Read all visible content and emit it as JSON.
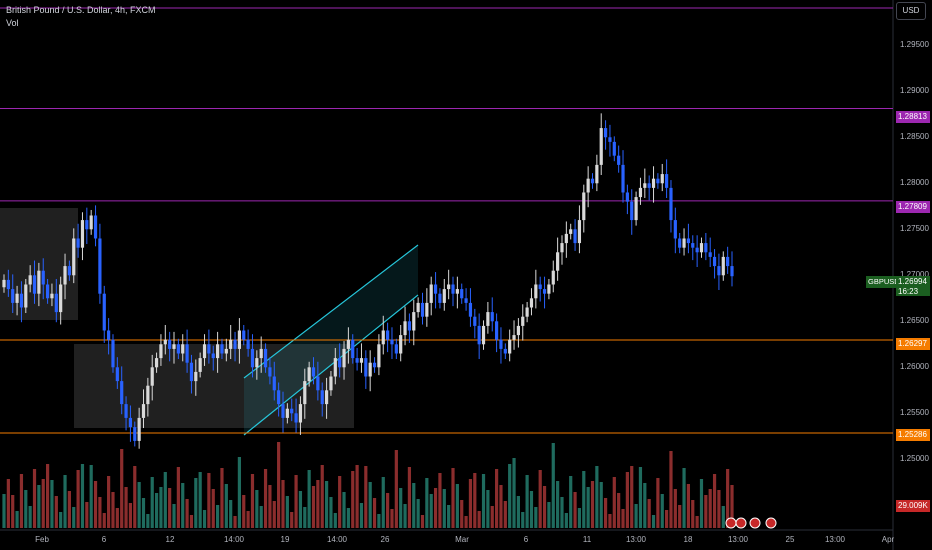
{
  "header": {
    "title": "British Pound / U.S. Dollar, 4h, FXCM",
    "indicator": "Vol"
  },
  "currency_button": "USD",
  "price_tags": {
    "level1": {
      "label": "1.28813",
      "color": "#9c27b0"
    },
    "level2": {
      "label": "1.27809",
      "color": "#9c27b0"
    },
    "current_symbol": "GBPUSD",
    "current_price": "1.26994",
    "countdown": "16:23",
    "current_color": "#1b5e20",
    "level3": {
      "label": "1.26297",
      "color": "#f57c00"
    },
    "level4": {
      "label": "1.25286",
      "color": "#f57c00"
    },
    "volume": {
      "label": "29.009K",
      "color": "#c62828"
    }
  },
  "colors": {
    "up": "#d9d9d9",
    "down": "#2962ff",
    "vol_up": "#1f6b5e",
    "vol_down": "#8b2d2d",
    "channel": "#26c6da"
  },
  "chart_data": {
    "type": "candlestick",
    "symbol": "GBPUSD",
    "timeframe": "4h",
    "ylim": [
      1.247,
      1.3
    ],
    "price_ticks": [
      "1.29500",
      "1.29000",
      "1.28500",
      "1.28000",
      "1.27500",
      "1.27000",
      "1.26500",
      "1.26000",
      "1.25500",
      "1.25000"
    ],
    "price_tick_values": [
      1.295,
      1.29,
      1.285,
      1.28,
      1.275,
      1.27,
      1.265,
      1.26,
      1.255,
      1.25
    ],
    "x_tick_labels": [
      "Feb",
      "6",
      "12",
      "14:00",
      "19",
      "14:00",
      "26",
      "Mar",
      "6",
      "11",
      "13:00",
      "18",
      "13:00",
      "25",
      "13:00",
      "Apr"
    ],
    "horizontal_levels": [
      1.29905,
      1.28813,
      1.27809,
      1.26297,
      1.25286
    ],
    "closes": [
      1.2695,
      1.2685,
      1.267,
      1.268,
      1.2665,
      1.269,
      1.27,
      1.268,
      1.2705,
      1.269,
      1.2675,
      1.268,
      1.266,
      1.269,
      1.271,
      1.27,
      1.274,
      1.273,
      1.276,
      1.275,
      1.2765,
      1.274,
      1.268,
      1.264,
      1.263,
      1.26,
      1.2585,
      1.256,
      1.2545,
      1.2535,
      1.252,
      1.2545,
      1.256,
      1.258,
      1.26,
      1.261,
      1.2625,
      1.263,
      1.262,
      1.2625,
      1.2615,
      1.2625,
      1.2605,
      1.2585,
      1.2595,
      1.261,
      1.2625,
      1.2615,
      1.261,
      1.2625,
      1.2615,
      1.262,
      1.263,
      1.262,
      1.264,
      1.263,
      1.262,
      1.26,
      1.261,
      1.262,
      1.26,
      1.259,
      1.2575,
      1.256,
      1.2545,
      1.2555,
      1.255,
      1.254,
      1.256,
      1.2585,
      1.26,
      1.259,
      1.2575,
      1.256,
      1.2575,
      1.259,
      1.261,
      1.26,
      1.262,
      1.263,
      1.261,
      1.2605,
      1.261,
      1.259,
      1.2605,
      1.26,
      1.2625,
      1.264,
      1.263,
      1.2625,
      1.2615,
      1.2635,
      1.265,
      1.264,
      1.266,
      1.267,
      1.2655,
      1.267,
      1.269,
      1.268,
      1.267,
      1.2685,
      1.269,
      1.268,
      1.2685,
      1.2675,
      1.267,
      1.2655,
      1.2645,
      1.2625,
      1.2645,
      1.266,
      1.265,
      1.263,
      1.262,
      1.2615,
      1.263,
      1.2635,
      1.2645,
      1.2655,
      1.2665,
      1.2675,
      1.269,
      1.2685,
      1.268,
      1.269,
      1.2705,
      1.2725,
      1.2735,
      1.2745,
      1.275,
      1.2735,
      1.276,
      1.279,
      1.2805,
      1.28,
      1.282,
      1.286,
      1.285,
      1.2845,
      1.283,
      1.282,
      1.279,
      1.278,
      1.276,
      1.2785,
      1.2795,
      1.28,
      1.2795,
      1.2805,
      1.28,
      1.281,
      1.2795,
      1.276,
      1.274,
      1.273,
      1.274,
      1.2735,
      1.273,
      1.2725,
      1.2735,
      1.2725,
      1.272,
      1.271,
      1.27,
      1.272,
      1.271,
      1.2699
    ]
  }
}
